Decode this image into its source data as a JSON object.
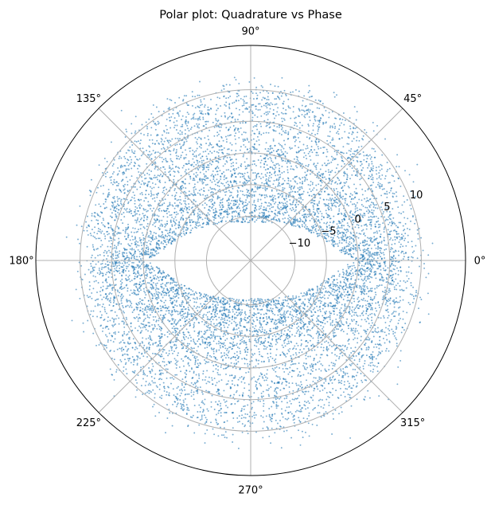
{
  "chart_data": {
    "type": "scatter",
    "projection": "polar",
    "title": "Polar plot: Quadrature vs Phase",
    "theta_tick_labels": [
      "0°",
      "45°",
      "90°",
      "135°",
      "180°",
      "225°",
      "270°",
      "315°"
    ],
    "theta_ticks_deg": [
      0,
      45,
      90,
      135,
      180,
      225,
      270,
      315
    ],
    "r_tick_labels": [
      "−10",
      "−5",
      "0",
      "5",
      "10"
    ],
    "r_ticks": [
      -10,
      -5,
      0,
      5,
      10
    ],
    "rlim": [
      -17,
      17
    ],
    "rlabel_position_deg": 22.5,
    "grid": true,
    "marker_color": "#1f77b4",
    "marker_alpha": 0.6,
    "series": [
      {
        "description_values": {
          "r_inner_at_0deg": 0,
          "r_inner_at_90deg": -11,
          "r_outer_mean": 6,
          "r_spread": 2.5
        }
      }
    ]
  }
}
